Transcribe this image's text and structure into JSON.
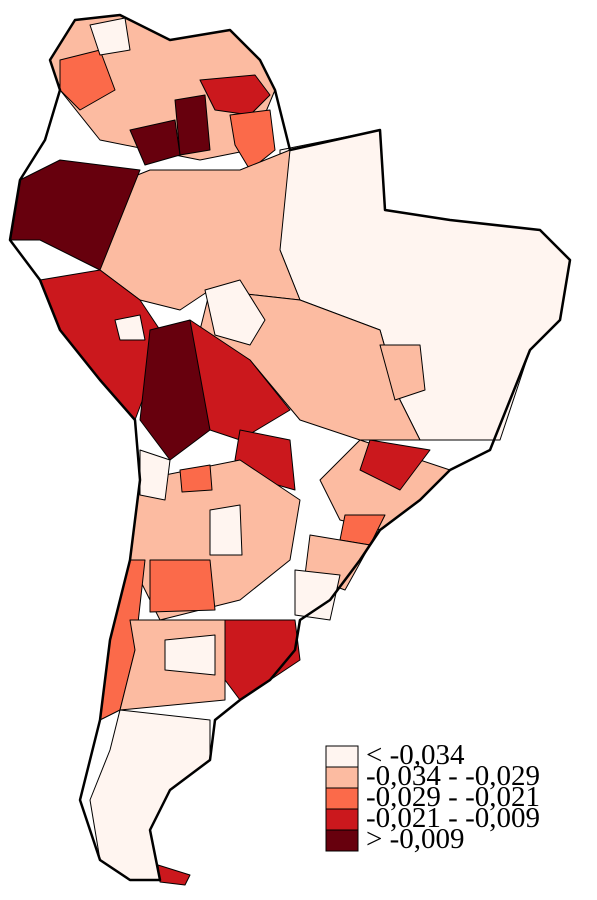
{
  "legend": {
    "items": [
      {
        "label": "< -0,034",
        "color": "#fff5f0"
      },
      {
        "label": "-0,034 - -0,029",
        "color": "#fcbba1"
      },
      {
        "label": "-0,029 - -0,021",
        "color": "#fb6a4a"
      },
      {
        "label": "-0,021 - -0,009",
        "color": "#cb181d"
      },
      {
        "label": "> -0,009",
        "color": "#67000d"
      }
    ]
  }
}
